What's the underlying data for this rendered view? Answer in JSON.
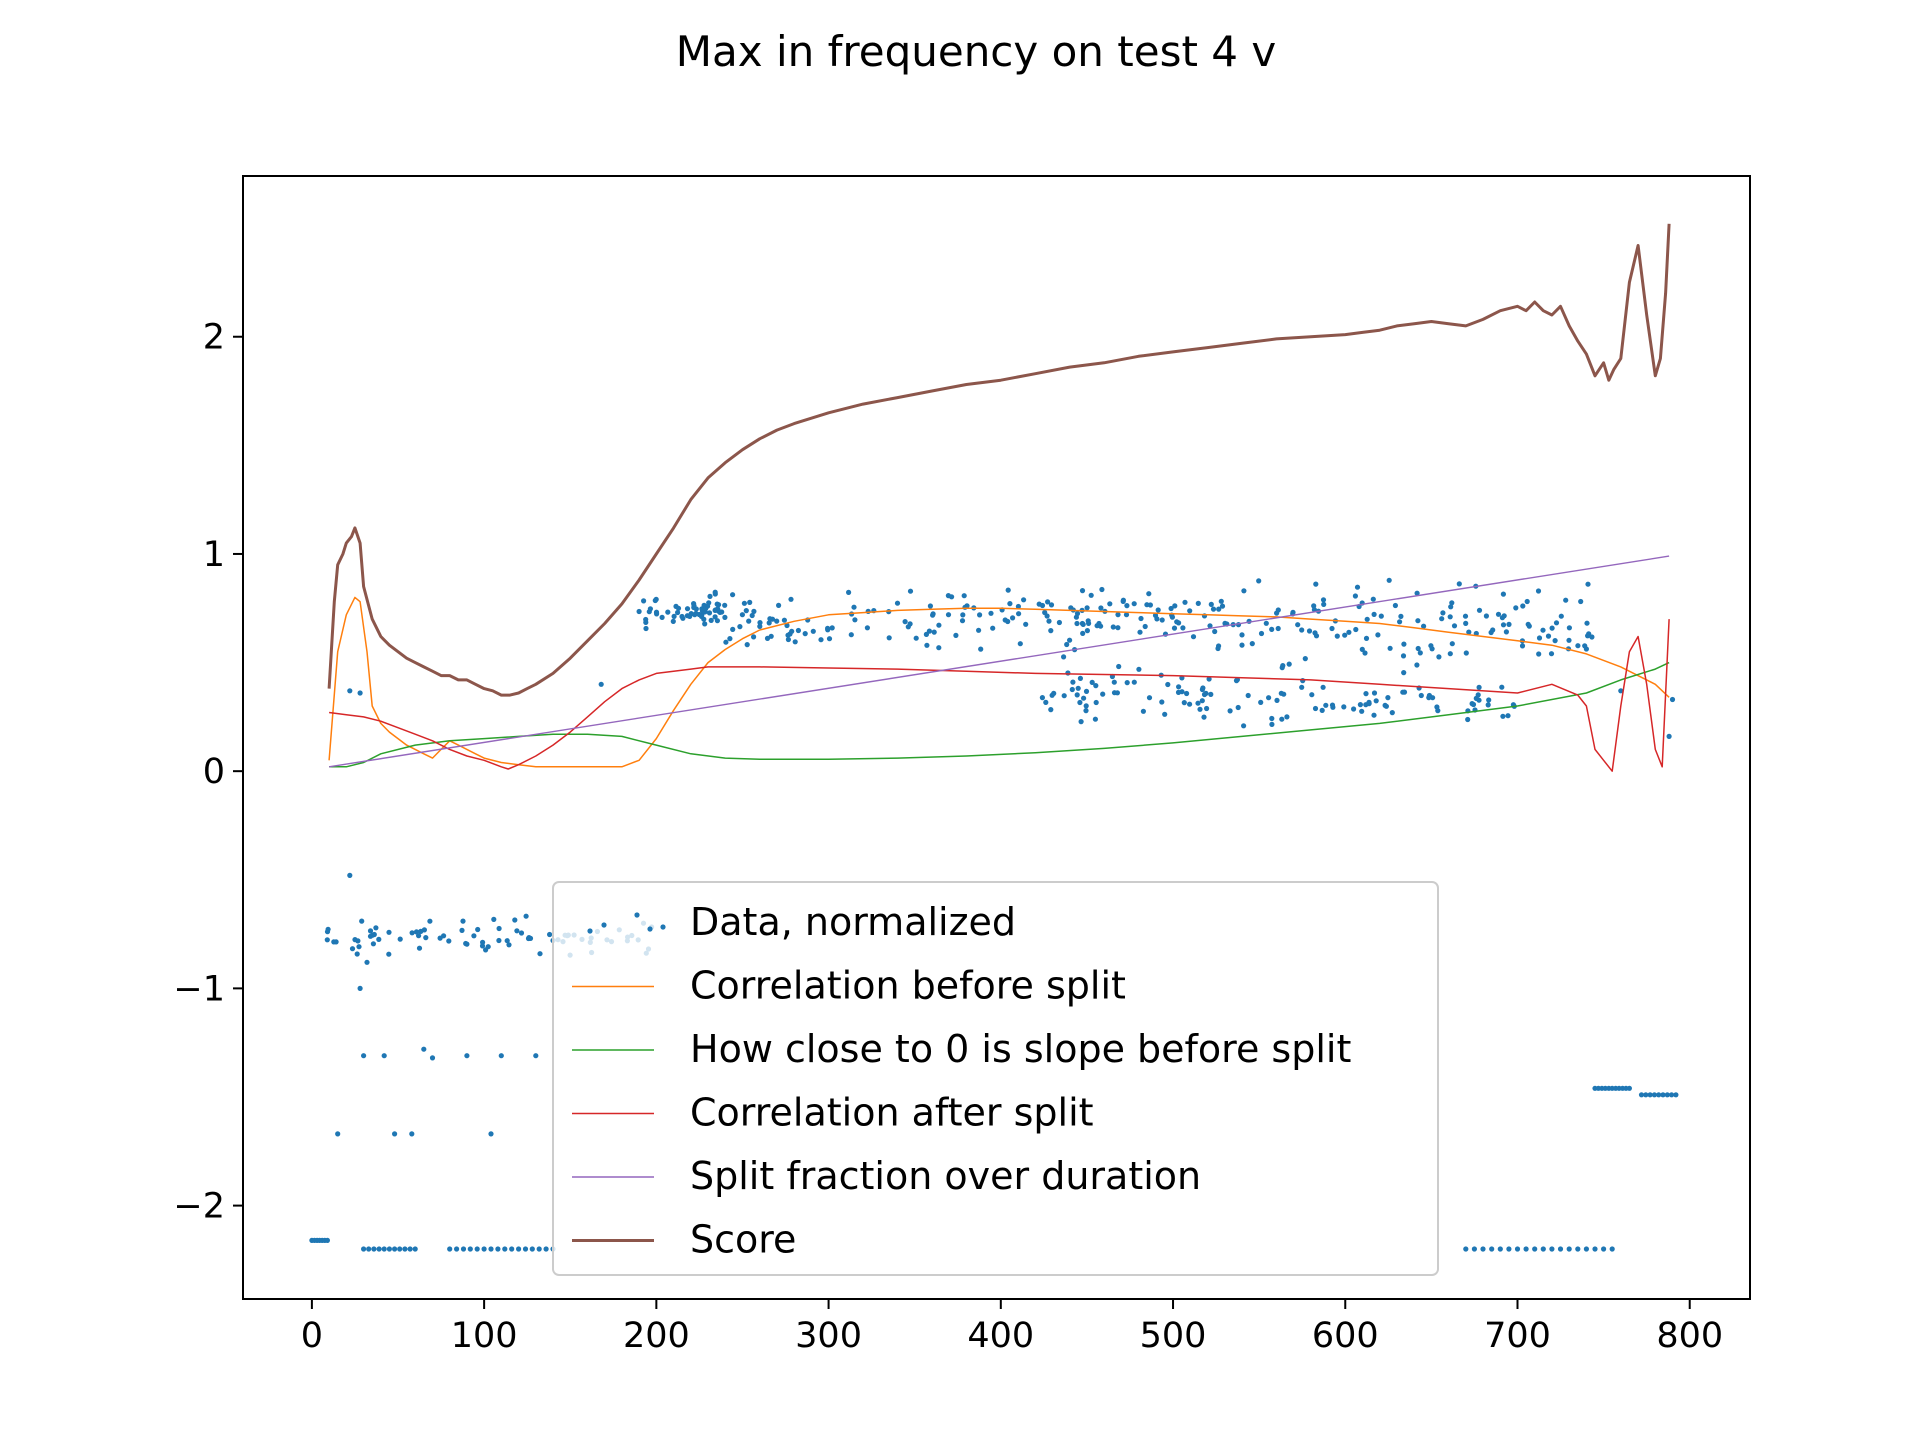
{
  "chart_data": {
    "type": "line",
    "title": "Max in frequency on test 4 v",
    "xlabel": "",
    "ylabel": "",
    "xlim": [
      -40,
      835
    ],
    "ylim": [
      -2.43,
      2.74
    ],
    "xticks": [
      0,
      100,
      200,
      300,
      400,
      500,
      600,
      700,
      800
    ],
    "yticks": [
      -2,
      -1,
      0,
      1,
      2
    ],
    "xtick_labels": [
      "0",
      "100",
      "200",
      "300",
      "400",
      "500",
      "600",
      "700",
      "800"
    ],
    "ytick_labels": [
      "−2",
      "−1",
      "0",
      "1",
      "2"
    ],
    "grid": false,
    "legend_position": "lower-center",
    "legend": [
      {
        "label": "Data, normalized",
        "kind": "scatter",
        "color": "#1f77b4"
      },
      {
        "label": "Correlation before split",
        "kind": "line",
        "color": "#ff7f0e"
      },
      {
        "label": "How close to 0 is slope before split",
        "kind": "line",
        "color": "#2ca02c"
      },
      {
        "label": "Correlation after split",
        "kind": "line",
        "color": "#d62728"
      },
      {
        "label": "Split fraction over duration",
        "kind": "line",
        "color": "#9467bd"
      },
      {
        "label": "Score",
        "kind": "line",
        "color": "#8c564b"
      }
    ],
    "series": [
      {
        "name": "Score",
        "color": "#8c564b",
        "x": [
          10,
          13,
          15,
          18,
          20,
          23,
          25,
          28,
          30,
          35,
          40,
          45,
          50,
          55,
          60,
          65,
          70,
          75,
          80,
          85,
          90,
          95,
          100,
          105,
          110,
          115,
          120,
          125,
          130,
          140,
          150,
          160,
          170,
          180,
          190,
          200,
          210,
          220,
          230,
          240,
          250,
          260,
          270,
          280,
          300,
          320,
          340,
          360,
          380,
          400,
          420,
          440,
          460,
          480,
          500,
          520,
          540,
          560,
          580,
          600,
          610,
          620,
          630,
          640,
          650,
          660,
          670,
          680,
          690,
          700,
          705,
          710,
          715,
          720,
          725,
          730,
          735,
          740,
          745,
          750,
          753,
          756,
          760,
          765,
          770,
          775,
          780,
          783,
          786,
          788
        ],
        "values": [
          0.38,
          0.78,
          0.95,
          1.0,
          1.05,
          1.08,
          1.12,
          1.05,
          0.85,
          0.7,
          0.62,
          0.58,
          0.55,
          0.52,
          0.5,
          0.48,
          0.46,
          0.44,
          0.44,
          0.42,
          0.42,
          0.4,
          0.38,
          0.37,
          0.35,
          0.35,
          0.36,
          0.38,
          0.4,
          0.45,
          0.52,
          0.6,
          0.68,
          0.77,
          0.88,
          1.0,
          1.12,
          1.25,
          1.35,
          1.42,
          1.48,
          1.53,
          1.57,
          1.6,
          1.65,
          1.69,
          1.72,
          1.75,
          1.78,
          1.8,
          1.83,
          1.86,
          1.88,
          1.91,
          1.93,
          1.95,
          1.97,
          1.99,
          2.0,
          2.01,
          2.02,
          2.03,
          2.05,
          2.06,
          2.07,
          2.06,
          2.05,
          2.08,
          2.12,
          2.14,
          2.12,
          2.16,
          2.12,
          2.1,
          2.14,
          2.05,
          1.98,
          1.92,
          1.82,
          1.88,
          1.8,
          1.85,
          1.9,
          2.25,
          2.42,
          2.1,
          1.82,
          1.9,
          2.2,
          2.52
        ]
      },
      {
        "name": "Correlation before split",
        "color": "#ff7f0e",
        "x": [
          10,
          15,
          20,
          25,
          28,
          32,
          35,
          40,
          45,
          50,
          55,
          60,
          65,
          70,
          75,
          80,
          85,
          90,
          95,
          100,
          110,
          120,
          130,
          140,
          150,
          160,
          170,
          180,
          190,
          200,
          210,
          220,
          230,
          240,
          250,
          260,
          280,
          300,
          320,
          340,
          360,
          380,
          400,
          420,
          440,
          460,
          480,
          500,
          520,
          540,
          560,
          580,
          600,
          620,
          640,
          660,
          680,
          700,
          720,
          740,
          760,
          780,
          788
        ],
        "values": [
          0.05,
          0.55,
          0.72,
          0.8,
          0.78,
          0.55,
          0.3,
          0.22,
          0.18,
          0.15,
          0.12,
          0.1,
          0.08,
          0.06,
          0.1,
          0.14,
          0.12,
          0.1,
          0.08,
          0.06,
          0.04,
          0.03,
          0.02,
          0.02,
          0.02,
          0.02,
          0.02,
          0.02,
          0.05,
          0.15,
          0.28,
          0.4,
          0.5,
          0.56,
          0.61,
          0.65,
          0.69,
          0.72,
          0.73,
          0.74,
          0.745,
          0.75,
          0.75,
          0.745,
          0.74,
          0.735,
          0.73,
          0.725,
          0.72,
          0.715,
          0.71,
          0.7,
          0.69,
          0.68,
          0.66,
          0.64,
          0.62,
          0.6,
          0.58,
          0.54,
          0.48,
          0.4,
          0.34
        ]
      },
      {
        "name": "How close to 0 is slope before split",
        "color": "#2ca02c",
        "x": [
          10,
          20,
          30,
          40,
          60,
          80,
          100,
          120,
          140,
          160,
          180,
          200,
          220,
          240,
          260,
          300,
          340,
          380,
          420,
          460,
          500,
          540,
          580,
          620,
          660,
          700,
          740,
          760,
          780,
          788
        ],
        "values": [
          0.02,
          0.02,
          0.04,
          0.08,
          0.12,
          0.14,
          0.15,
          0.16,
          0.17,
          0.17,
          0.16,
          0.12,
          0.08,
          0.06,
          0.055,
          0.055,
          0.06,
          0.07,
          0.085,
          0.105,
          0.13,
          0.16,
          0.19,
          0.22,
          0.26,
          0.3,
          0.36,
          0.42,
          0.47,
          0.5
        ]
      },
      {
        "name": "Correlation after split",
        "color": "#d62728",
        "x": [
          10,
          20,
          30,
          40,
          50,
          60,
          70,
          80,
          90,
          100,
          110,
          114,
          120,
          130,
          140,
          150,
          160,
          170,
          180,
          190,
          200,
          210,
          220,
          230,
          260,
          300,
          340,
          380,
          420,
          460,
          500,
          540,
          580,
          620,
          660,
          700,
          720,
          735,
          740,
          745,
          750,
          755,
          760,
          765,
          770,
          775,
          780,
          784,
          788
        ],
        "values": [
          0.27,
          0.26,
          0.25,
          0.23,
          0.2,
          0.17,
          0.14,
          0.1,
          0.07,
          0.05,
          0.02,
          0.01,
          0.03,
          0.07,
          0.12,
          0.18,
          0.25,
          0.32,
          0.38,
          0.42,
          0.45,
          0.46,
          0.47,
          0.48,
          0.48,
          0.475,
          0.47,
          0.46,
          0.45,
          0.445,
          0.44,
          0.43,
          0.42,
          0.4,
          0.38,
          0.36,
          0.4,
          0.35,
          0.3,
          0.1,
          0.05,
          0.0,
          0.3,
          0.55,
          0.62,
          0.4,
          0.1,
          0.02,
          0.7
        ]
      },
      {
        "name": "Split fraction over duration",
        "color": "#9467bd",
        "x": [
          10,
          788
        ],
        "values": [
          0.02,
          0.99
        ]
      }
    ],
    "scatter": {
      "name": "Data, normalized",
      "color": "#1f77b4",
      "clusters": [
        {
          "x_start": 190,
          "x_end": 240,
          "y_center": 0.74,
          "y_spread": 0.04,
          "count": 60
        },
        {
          "x_start": 240,
          "x_end": 540,
          "y_center": 0.7,
          "y_spread": 0.07,
          "count": 170
        },
        {
          "x_start": 540,
          "x_end": 745,
          "y_center": 0.66,
          "y_spread": 0.11,
          "count": 120
        },
        {
          "x_start": 420,
          "x_end": 540,
          "y_center": 0.36,
          "y_spread": 0.08,
          "count": 60
        },
        {
          "x_start": 540,
          "x_end": 700,
          "y_center": 0.3,
          "y_spread": 0.06,
          "count": 60
        },
        {
          "x_start": 5,
          "x_end": 200,
          "y_center": -0.76,
          "y_spread": 0.05,
          "count": 80
        }
      ],
      "points": [
        {
          "x": 22,
          "y": -0.48
        },
        {
          "x": 28,
          "y": -1.0
        },
        {
          "x": 32,
          "y": -0.88
        },
        {
          "x": 30,
          "y": -1.31
        },
        {
          "x": 42,
          "y": -1.31
        },
        {
          "x": 65,
          "y": -1.28
        },
        {
          "x": 70,
          "y": -1.32
        },
        {
          "x": 90,
          "y": -1.31
        },
        {
          "x": 110,
          "y": -1.31
        },
        {
          "x": 130,
          "y": -1.31
        },
        {
          "x": 15,
          "y": -1.67
        },
        {
          "x": 48,
          "y": -1.67
        },
        {
          "x": 58,
          "y": -1.67
        },
        {
          "x": 104,
          "y": -1.67
        },
        {
          "x": 22,
          "y": 0.37
        },
        {
          "x": 28,
          "y": 0.36
        },
        {
          "x": 168,
          "y": 0.4
        },
        {
          "x": 760,
          "y": 0.37
        },
        {
          "x": 790,
          "y": 0.33
        },
        {
          "x": 788,
          "y": 0.16
        }
      ],
      "tracks": [
        {
          "x_start": 0,
          "x_end": 10,
          "y": -2.16,
          "step": 1.5
        },
        {
          "x_start": 30,
          "x_end": 60,
          "y": -2.2,
          "step": 3
        },
        {
          "x_start": 80,
          "x_end": 140,
          "y": -2.2,
          "step": 4
        },
        {
          "x_start": 670,
          "x_end": 755,
          "y": -2.2,
          "step": 5
        },
        {
          "x_start": 745,
          "x_end": 765,
          "y": -1.46,
          "step": 2
        },
        {
          "x_start": 772,
          "x_end": 793,
          "y": -1.49,
          "step": 2.5
        }
      ]
    }
  }
}
